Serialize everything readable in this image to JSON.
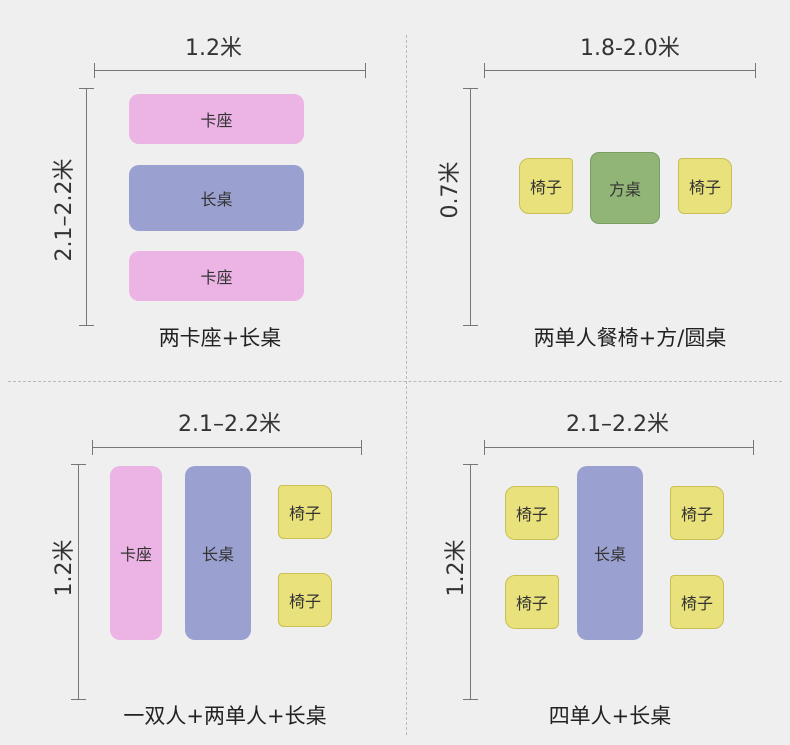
{
  "colors": {
    "booth": "#ecb4e4",
    "long_table": "#9aa0cf",
    "square_table": "#90b577",
    "chair": "#e9e17b",
    "background": "#efefef"
  },
  "panels": [
    {
      "width_label": "1.2米",
      "depth_label": "2.1–2.2米",
      "caption": "两卡座+长桌",
      "items": {
        "booth_top": "卡座",
        "table": "长桌",
        "booth_bottom": "卡座"
      }
    },
    {
      "width_label": "1.8-2.0米",
      "depth_label": "0.7米",
      "caption": "两单人餐椅+方/圆桌",
      "items": {
        "chair_left": "椅子",
        "table": "方桌",
        "chair_right": "椅子"
      }
    },
    {
      "width_label": "2.1–2.2米",
      "depth_label": "1.2米",
      "caption": "一双人+两单人+长桌",
      "items": {
        "booth": "卡座",
        "table": "长桌",
        "chair_top": "椅子",
        "chair_bottom": "椅子"
      }
    },
    {
      "width_label": "2.1–2.2米",
      "depth_label": "1.2米",
      "caption": "四单人+长桌",
      "items": {
        "chair_tl": "椅子",
        "chair_bl": "椅子",
        "table": "长桌",
        "chair_tr": "椅子",
        "chair_br": "椅子"
      }
    }
  ]
}
